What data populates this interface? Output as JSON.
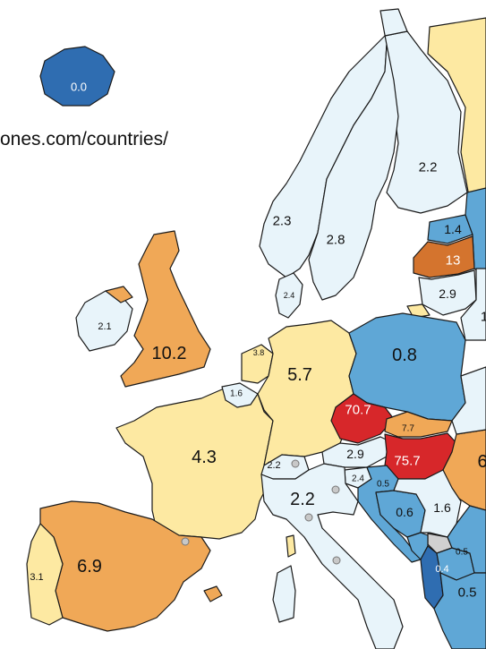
{
  "source_text": "ones.com/countries/",
  "colors": {
    "very_low": "#2f6db1",
    "low": "#5fa7d6",
    "light": "#e8f4fa",
    "pale_yellow": "#fde9a2",
    "orange": "#f0a857",
    "dark_orange": "#d4742e",
    "red": "#d7272a",
    "gray": "#d0d0d0",
    "sea": "#ffffff"
  },
  "countries": [
    {
      "id": "iceland",
      "value": "0.0"
    },
    {
      "id": "norway",
      "value": "2.3"
    },
    {
      "id": "sweden",
      "value": "2.8"
    },
    {
      "id": "finland",
      "value": "2.2"
    },
    {
      "id": "estonia",
      "value": "1.4"
    },
    {
      "id": "latvia",
      "value": "13"
    },
    {
      "id": "lithuania",
      "value": "2.9"
    },
    {
      "id": "ireland",
      "value": "2.1"
    },
    {
      "id": "uk",
      "value": "10.2"
    },
    {
      "id": "denmark",
      "value": "2.4"
    },
    {
      "id": "netherlands",
      "value": "3.8"
    },
    {
      "id": "belgium",
      "value": "1.6"
    },
    {
      "id": "germany",
      "value": "5.7"
    },
    {
      "id": "poland",
      "value": "0.8"
    },
    {
      "id": "czechia",
      "value": "70.7"
    },
    {
      "id": "slovakia",
      "value": "7.7"
    },
    {
      "id": "hungary",
      "value": "75.7"
    },
    {
      "id": "austria",
      "value": "2.9"
    },
    {
      "id": "switzerland",
      "value": "2.2"
    },
    {
      "id": "slovenia",
      "value": "2.4"
    },
    {
      "id": "croatia",
      "value": "0.5"
    },
    {
      "id": "bosnia",
      "value": "0.6"
    },
    {
      "id": "serbia",
      "value": "1.6"
    },
    {
      "id": "montenegro",
      "value": "0.5"
    },
    {
      "id": "albania",
      "value": "0.4"
    },
    {
      "id": "north_macedonia",
      "value": "0.5"
    },
    {
      "id": "france",
      "value": "4.3"
    },
    {
      "id": "italy",
      "value": "2.2"
    },
    {
      "id": "spain",
      "value": "6.9"
    },
    {
      "id": "portugal",
      "value": "3.1"
    },
    {
      "id": "romania",
      "value": "6"
    },
    {
      "id": "belarus_edge",
      "value": "1"
    }
  ]
}
